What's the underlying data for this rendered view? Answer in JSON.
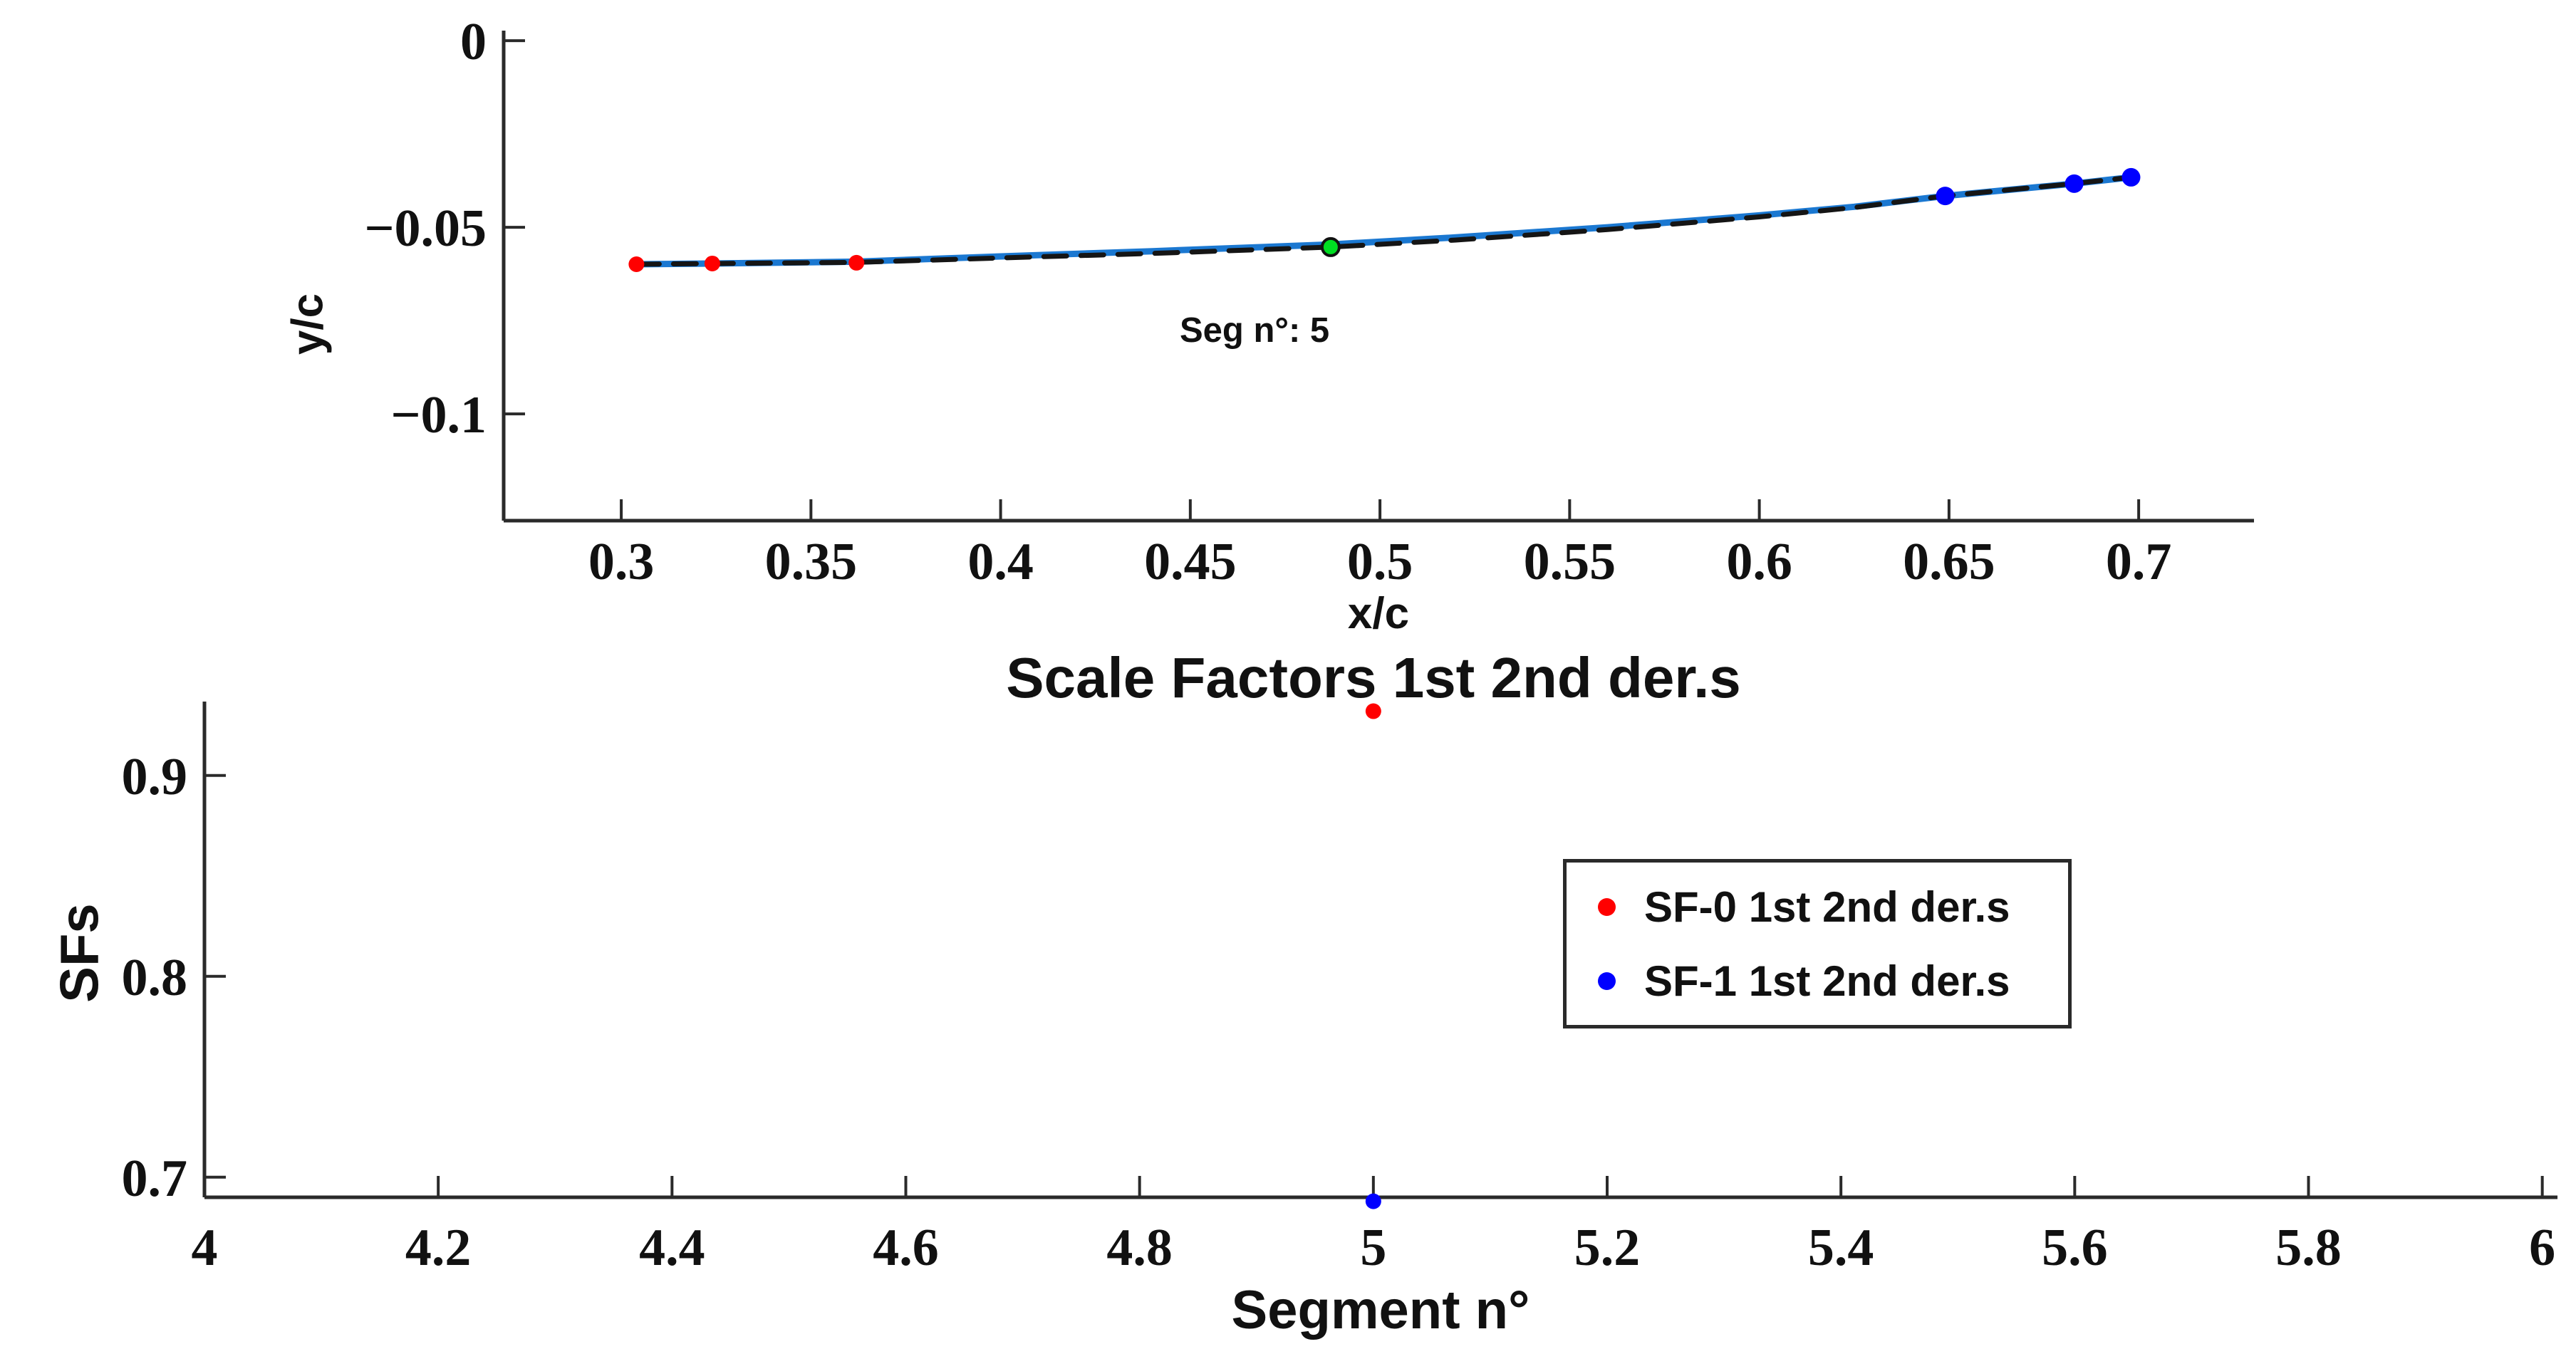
{
  "figure_bg": "#ffffff",
  "colors": {
    "curve_blue": "#1b78d1",
    "curve_dashed": "#151515",
    "marker_red": "#ff0000",
    "marker_green": "#00dd22",
    "marker_green_edge": "#111111",
    "marker_blue": "#0000ff",
    "axis": "#2a2a2a",
    "text": "#111111"
  },
  "chart_data": [
    {
      "type": "line",
      "title": "",
      "xlabel": "x/c",
      "ylabel": "y/c",
      "xlim": [
        0.269,
        0.7304
      ],
      "ylim": [
        -0.1286,
        0.0027
      ],
      "grid": false,
      "xtick_values": [
        0.3,
        0.35,
        0.4,
        0.45,
        0.5,
        0.55,
        0.6,
        0.65,
        0.7
      ],
      "xtick_labels": [
        "0.3",
        "0.35",
        "0.4",
        "0.45",
        "0.5",
        "0.55",
        "0.6",
        "0.65",
        "0.7"
      ],
      "ytick_values": [
        0,
        -0.05,
        -0.1
      ],
      "ytick_labels": [
        "0",
        "−0.05",
        "−0.1"
      ],
      "series": [
        {
          "name": "segment-curve-solid",
          "kind": "line",
          "style": "solid",
          "color": "#1b78d1",
          "width": 9,
          "x": [
            0.304,
            0.324,
            0.362,
            0.4,
            0.44,
            0.487,
            0.52,
            0.56,
            0.6,
            0.625,
            0.649,
            0.683,
            0.698
          ],
          "y": [
            -0.0599,
            -0.0597,
            -0.0592,
            -0.0578,
            -0.0564,
            -0.0546,
            -0.0527,
            -0.05,
            -0.0468,
            -0.0445,
            -0.0416,
            -0.0383,
            -0.0366
          ]
        },
        {
          "name": "segment-curve-dashed",
          "kind": "line",
          "style": "dashed",
          "color": "#151515",
          "width": 7,
          "x": [
            0.304,
            0.324,
            0.362,
            0.4,
            0.44,
            0.487,
            0.52,
            0.56,
            0.6,
            0.625,
            0.649,
            0.683,
            0.698
          ],
          "y": [
            -0.0599,
            -0.0597,
            -0.0594,
            -0.0582,
            -0.057,
            -0.0553,
            -0.0534,
            -0.0506,
            -0.0472,
            -0.0447,
            -0.0416,
            -0.0383,
            -0.0366
          ]
        },
        {
          "name": "red-control-points",
          "kind": "scatter",
          "color": "#ff0000",
          "radius": 11,
          "x": [
            0.304,
            0.324,
            0.362
          ],
          "y": [
            -0.0599,
            -0.0597,
            -0.0595
          ]
        },
        {
          "name": "green-active-point",
          "kind": "scatter",
          "color": "#00dd22",
          "edge": "#111111",
          "edge_width": 4,
          "radius": 12,
          "x": [
            0.487
          ],
          "y": [
            -0.0553
          ]
        },
        {
          "name": "blue-control-points",
          "kind": "scatter",
          "color": "#0000ff",
          "radius": 13,
          "x": [
            0.649,
            0.683,
            0.698
          ],
          "y": [
            -0.0416,
            -0.0383,
            -0.0366
          ]
        }
      ],
      "annotation": {
        "text": "Seg n°: 5",
        "x": 0.448,
        "y": -0.0735
      }
    },
    {
      "type": "scatter",
      "title": "Scale Factors 1st 2nd der.s",
      "xlabel": "Segment n°",
      "ylabel": "SFs",
      "xlim": [
        4,
        6.013
      ],
      "ylim": [
        0.69,
        0.9368
      ],
      "grid": false,
      "xtick_values": [
        4,
        4.2,
        4.4,
        4.6,
        4.8,
        5,
        5.2,
        5.4,
        5.6,
        5.8,
        6
      ],
      "xtick_labels": [
        "4",
        "4.2",
        "4.4",
        "4.6",
        "4.8",
        "5",
        "5.2",
        "5.4",
        "5.6",
        "5.8",
        "6"
      ],
      "ytick_values": [
        0.9,
        0.8,
        0.7
      ],
      "ytick_labels": [
        "0.9",
        "0.8",
        "0.7"
      ],
      "series": [
        {
          "name": "SF-0 1st 2nd der.s",
          "kind": "scatter",
          "color": "#ff0000",
          "radius": 11,
          "x": [
            5
          ],
          "y": [
            0.932
          ]
        },
        {
          "name": "SF-1 1st 2nd der.s",
          "kind": "scatter",
          "color": "#0000ff",
          "radius": 11,
          "x": [
            5
          ],
          "y": [
            0.688
          ]
        }
      ],
      "legend": {
        "position": "right",
        "items": [
          {
            "label": "SF-0 1st 2nd der.s",
            "color": "#ff0000"
          },
          {
            "label": "SF-1 1st 2nd der.s",
            "color": "#0000ff"
          }
        ]
      }
    }
  ]
}
